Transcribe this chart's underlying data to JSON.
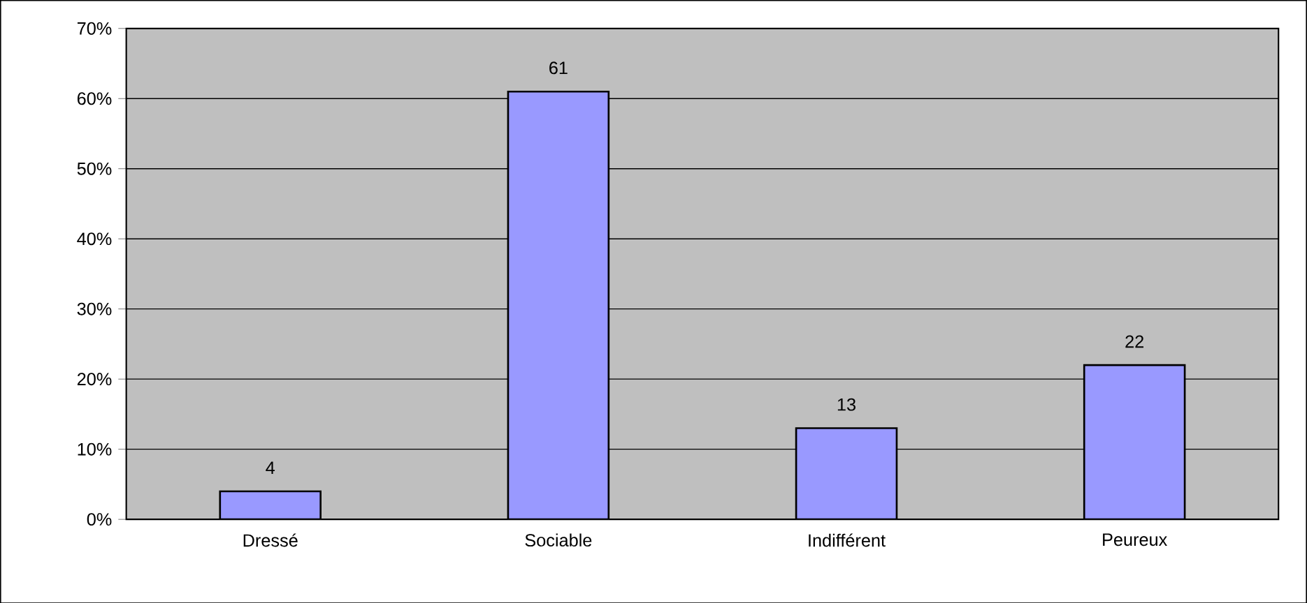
{
  "chart_data": {
    "type": "bar",
    "categories": [
      "Dressé",
      "Sociable",
      "Indifférent",
      "Peureux"
    ],
    "values": [
      4,
      61,
      13,
      22
    ],
    "color": "#9999ff",
    "ylim": [
      0,
      70
    ],
    "yticks": [
      {
        "value": 0,
        "label": "0%"
      },
      {
        "value": 10,
        "label": "10%"
      },
      {
        "value": 20,
        "label": "20%"
      },
      {
        "value": 30,
        "label": "30%"
      },
      {
        "value": 40,
        "label": "40%"
      },
      {
        "value": 50,
        "label": "50%"
      },
      {
        "value": 60,
        "label": "60%"
      },
      {
        "value": 70,
        "label": "70%"
      }
    ],
    "grid": "y",
    "data_labels": true
  }
}
